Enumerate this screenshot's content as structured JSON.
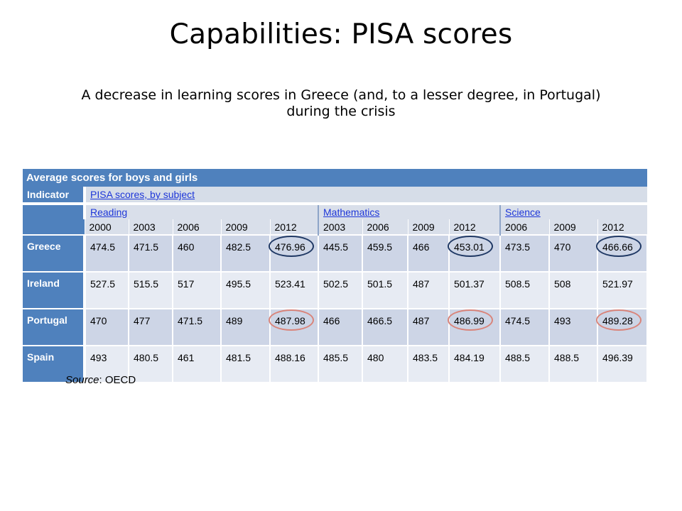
{
  "title": "Capabilities: PISA scores",
  "subtitle_line1": "A decrease in learning scores in Greece (and, to a lesser degree, in Portugal)",
  "subtitle_line2": "during the crisis",
  "table": {
    "header": "Average scores for boys and girls",
    "indicator_label": "Indicator",
    "indicator_value": "PISA scores, by subject",
    "subjects": [
      "Reading",
      "Mathematics",
      "Science"
    ],
    "years": [
      "2000",
      "2003",
      "2006",
      "2009",
      "2012",
      "2003",
      "2006",
      "2009",
      "2012",
      "2006",
      "2009",
      "2012"
    ],
    "rows": [
      {
        "country": "Greece",
        "values": [
          "474.5",
          "471.5",
          "460",
          "482.5",
          "476.96",
          "445.5",
          "459.5",
          "466",
          "453.01",
          "473.5",
          "470",
          "466.66"
        ]
      },
      {
        "country": "Ireland",
        "values": [
          "527.5",
          "515.5",
          "517",
          "495.5",
          "523.41",
          "502.5",
          "501.5",
          "487",
          "501.37",
          "508.5",
          "508",
          "521.97"
        ]
      },
      {
        "country": "Portugal",
        "values": [
          "470",
          "477",
          "471.5",
          "489",
          "487.98",
          "466",
          "466.5",
          "487",
          "486.99",
          "474.5",
          "493",
          "489.28"
        ]
      },
      {
        "country": "Spain",
        "values": [
          "493",
          "480.5",
          "461",
          "481.5",
          "488.16",
          "485.5",
          "480",
          "483.5",
          "484.19",
          "488.5",
          "488.5",
          "496.39"
        ]
      }
    ]
  },
  "highlight_colors": {
    "greece": "#1f3864",
    "portugal": "#d9847a"
  },
  "source_label": "Source",
  "source_value": ": OECD"
}
